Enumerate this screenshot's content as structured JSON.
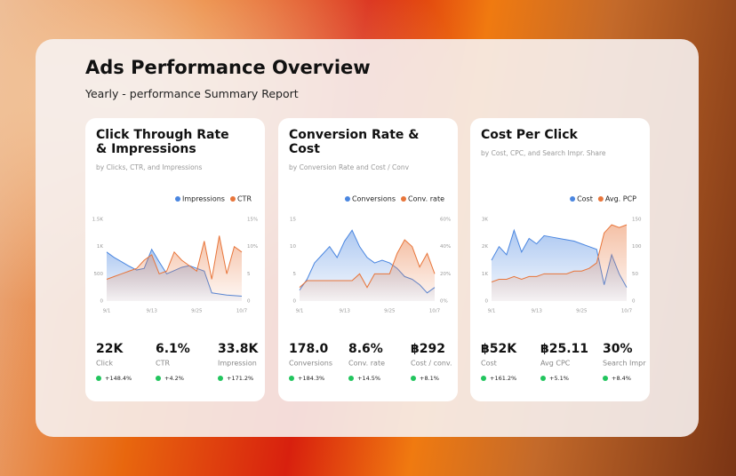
{
  "header": {
    "title": "Ads Performance Overview",
    "subtitle": "Yearly - performance Summary Report"
  },
  "chart_data": [
    {
      "type": "line",
      "title": "Click Through Rate & Impressions",
      "subtitle": "by Clicks, CTR, and Impressions",
      "categories": [
        "9/1",
        null,
        null,
        null,
        null,
        null,
        "9/13",
        null,
        null,
        null,
        null,
        null,
        "9/25",
        null,
        null,
        null,
        null,
        null,
        "10/7"
      ],
      "series": [
        {
          "name": "Impressions",
          "color": "#4a86e0",
          "values": [
            900,
            800,
            720,
            640,
            570,
            600,
            950,
            720,
            500,
            560,
            620,
            650,
            600,
            550,
            150,
            130,
            110,
            100,
            90
          ]
        },
        {
          "name": "CTR",
          "color": "#e8753a",
          "axis": "y2",
          "values": [
            4,
            4.5,
            5,
            5.5,
            6,
            7.5,
            8.5,
            5,
            5.5,
            9,
            7.5,
            6.5,
            5.5,
            11,
            4,
            12,
            5,
            10,
            9
          ]
        }
      ],
      "ylim": [
        0,
        1500
      ],
      "yticks": [
        0,
        500,
        {
          "value": 1000,
          "label": "1K"
        },
        {
          "value": 1500,
          "label": "1.5K"
        }
      ],
      "y2lim": [
        0,
        15
      ],
      "y2ticks": [
        0,
        5,
        {
          "value": 10,
          "label": "10%"
        },
        {
          "value": 15,
          "label": "15%"
        }
      ]
    },
    {
      "type": "line",
      "title": "Conversion Rate & Cost",
      "subtitle": "by Conversion Rate and Cost / Conv",
      "categories": [
        "9/1",
        null,
        null,
        null,
        null,
        null,
        "9/13",
        null,
        null,
        null,
        null,
        null,
        "9/25",
        null,
        null,
        null,
        null,
        null,
        "10/7"
      ],
      "series": [
        {
          "name": "Conversions",
          "color": "#4a86e0",
          "values": [
            2,
            4,
            7,
            8.5,
            10,
            8,
            11,
            13,
            10,
            8,
            7,
            7.5,
            7,
            6,
            4.5,
            4,
            3,
            1.5,
            2.5
          ]
        },
        {
          "name": "Conv. rate",
          "color": "#e8753a",
          "axis": "y2",
          "values": [
            10,
            15,
            15,
            15,
            15,
            15,
            15,
            15,
            20,
            10,
            20,
            20,
            20,
            35,
            45,
            40,
            25,
            35,
            20
          ]
        }
      ],
      "ylim": [
        0,
        15
      ],
      "yticks": [
        0,
        5,
        10,
        15
      ],
      "y2lim": [
        0,
        60
      ],
      "y2ticks": [
        {
          "value": 0,
          "label": "0%"
        },
        {
          "value": 20,
          "label": "20%"
        },
        {
          "value": 40,
          "label": "40%"
        },
        {
          "value": 60,
          "label": "60%"
        }
      ]
    },
    {
      "type": "line",
      "title": "Cost Per Click",
      "subtitle": "by Cost, CPC, and Search Impr. Share",
      "categories": [
        "9/1",
        null,
        null,
        null,
        null,
        null,
        "9/13",
        null,
        null,
        null,
        null,
        null,
        "9/25",
        null,
        null,
        null,
        null,
        null,
        "10/7"
      ],
      "series": [
        {
          "name": "Cost",
          "color": "#4a86e0",
          "values": [
            1500,
            2000,
            1700,
            2600,
            1800,
            2300,
            2100,
            2400,
            2350,
            2300,
            2250,
            2200,
            2100,
            2000,
            1900,
            600,
            1700,
            1000,
            500
          ]
        },
        {
          "name": "Avg. PCP",
          "color": "#e8753a",
          "axis": "y2",
          "values": [
            35,
            40,
            40,
            45,
            40,
            45,
            45,
            50,
            50,
            50,
            50,
            55,
            55,
            60,
            70,
            125,
            140,
            135,
            140
          ]
        }
      ],
      "ylim": [
        0,
        3000
      ],
      "yticks": [
        0,
        {
          "value": 1000,
          "label": "1K"
        },
        {
          "value": 2000,
          "label": "2K"
        },
        {
          "value": 3000,
          "label": "3K"
        }
      ],
      "y2lim": [
        0,
        150
      ],
      "y2ticks": [
        0,
        50,
        100,
        150
      ]
    }
  ],
  "cards": [
    {
      "kpis": [
        {
          "value": "22K",
          "label": "Click",
          "change": "+148.4%"
        },
        {
          "value": "6.1%",
          "label": "CTR",
          "change": "+4.2%"
        },
        {
          "value": "33.8K",
          "label": "Impression",
          "change": "+171.2%"
        }
      ]
    },
    {
      "kpis": [
        {
          "value": "178.0",
          "label": "Conversions",
          "change": "+184.3%"
        },
        {
          "value": "8.6%",
          "label": "Conv. rate",
          "change": "+14.5%"
        },
        {
          "value": "฿292",
          "label": "Cost / conv.",
          "change": "+8.1%"
        }
      ]
    },
    {
      "kpis": [
        {
          "value": "฿52K",
          "label": "Cost",
          "change": "+161.2%"
        },
        {
          "value": "฿25.11",
          "label": "Avg CPC",
          "change": "+5.1%"
        },
        {
          "value": "30%",
          "label": "Search Impr",
          "change": "+8.4%"
        }
      ]
    }
  ]
}
